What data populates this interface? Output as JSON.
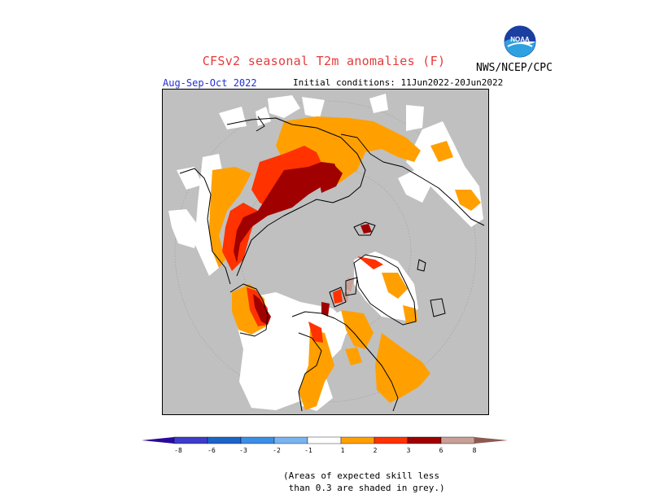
{
  "title": "CFSv2 seasonal T2m anomalies (F)",
  "agency": "NWS/NCEP/CPC",
  "logo_text": "NOAA",
  "period": "Aug-Sep-Oct 2022",
  "initial_conditions": "Initial conditions: 11Jun2022-20Jun2022",
  "legend": {
    "ticks": [
      "-8",
      "-6",
      "-3",
      "-2",
      "-1",
      "1",
      "2",
      "3",
      "6",
      "8"
    ],
    "colors": [
      "#2a0a9c",
      "#3d3dcc",
      "#1e64c8",
      "#3c8ee6",
      "#78b4f0",
      "#ffffff",
      "#ffa000",
      "#ff3200",
      "#a00000",
      "#c8a096",
      "#8c5a50"
    ]
  },
  "footnote": {
    "line1": "(Areas of expected skill less",
    "line2": " than 0.3 are shaded in grey.)"
  },
  "map_colors": {
    "no_skill": "#c0c0c0",
    "land_skill_neutral": "#ffffff",
    "anom_1_2": "#ffa000",
    "anom_2_3": "#ff3200",
    "anom_3_6": "#a00000",
    "anom_6_8": "#c8a096"
  }
}
